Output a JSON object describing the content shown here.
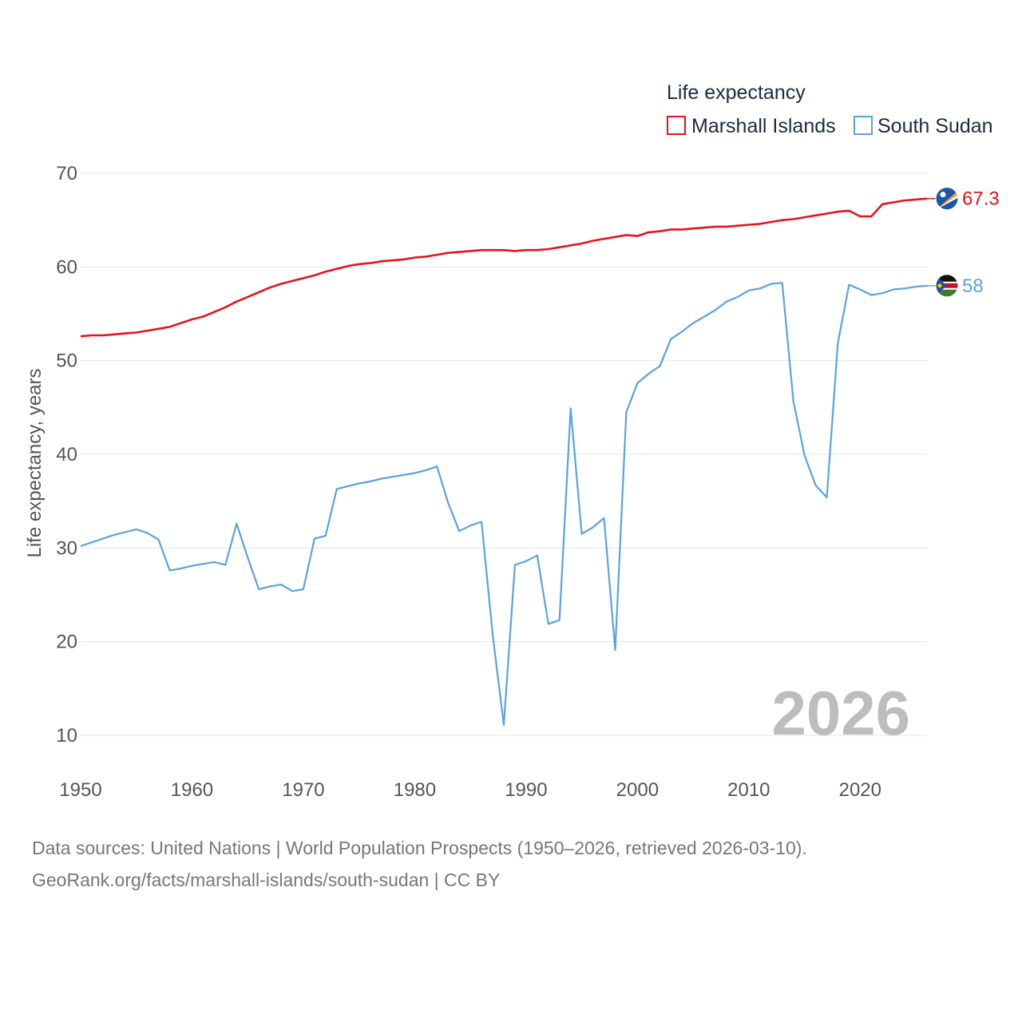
{
  "chart_data": {
    "type": "line",
    "title": "",
    "xlabel": "",
    "ylabel": "Life expectancy, years",
    "xlim": [
      1950,
      2026
    ],
    "ylim": [
      10,
      70
    ],
    "x_ticks": [
      1950,
      1960,
      1970,
      1980,
      1990,
      2000,
      2010,
      2020
    ],
    "y_ticks": [
      10,
      20,
      30,
      40,
      50,
      60,
      70
    ],
    "grid": true,
    "legend_title": "Life expectancy",
    "legend_position": "top-right",
    "year_label": "2026",
    "x": [
      1950,
      1951,
      1952,
      1953,
      1954,
      1955,
      1956,
      1957,
      1958,
      1959,
      1960,
      1961,
      1962,
      1963,
      1964,
      1965,
      1966,
      1967,
      1968,
      1969,
      1970,
      1971,
      1972,
      1973,
      1974,
      1975,
      1976,
      1977,
      1978,
      1979,
      1980,
      1981,
      1982,
      1983,
      1984,
      1985,
      1986,
      1987,
      1988,
      1989,
      1990,
      1991,
      1992,
      1993,
      1994,
      1995,
      1996,
      1997,
      1998,
      1999,
      2000,
      2001,
      2002,
      2003,
      2004,
      2005,
      2006,
      2007,
      2008,
      2009,
      2010,
      2011,
      2012,
      2013,
      2014,
      2015,
      2016,
      2017,
      2018,
      2019,
      2020,
      2021,
      2022,
      2023,
      2024,
      2025,
      2026
    ],
    "series": [
      {
        "name": "Marshall Islands",
        "color": "#e8121a",
        "end_label": "67.3",
        "flag": "marshall-islands-flag-icon",
        "values": [
          52.6,
          52.7,
          52.7,
          52.8,
          52.9,
          53.0,
          53.2,
          53.4,
          53.6,
          54.0,
          54.4,
          54.7,
          55.2,
          55.7,
          56.3,
          56.8,
          57.3,
          57.8,
          58.2,
          58.5,
          58.8,
          59.1,
          59.5,
          59.8,
          60.1,
          60.3,
          60.4,
          60.6,
          60.7,
          60.8,
          61.0,
          61.1,
          61.3,
          61.5,
          61.6,
          61.7,
          61.8,
          61.8,
          61.8,
          61.7,
          61.8,
          61.8,
          61.9,
          62.1,
          62.3,
          62.5,
          62.8,
          63.0,
          63.2,
          63.4,
          63.3,
          63.7,
          63.8,
          64.0,
          64.0,
          64.1,
          64.2,
          64.3,
          64.3,
          64.4,
          64.5,
          64.6,
          64.8,
          65.0,
          65.1,
          65.3,
          65.5,
          65.7,
          65.9,
          66.0,
          65.4,
          65.4,
          66.7,
          66.9,
          67.1,
          67.2,
          67.3
        ]
      },
      {
        "name": "South Sudan",
        "color": "#5aa2e2",
        "end_label": "58",
        "flag": "south-sudan-flag-icon",
        "values": [
          30.2,
          30.6,
          31.0,
          31.4,
          31.7,
          32.0,
          31.6,
          30.9,
          27.6,
          27.8,
          28.1,
          28.3,
          28.5,
          28.2,
          32.6,
          29.0,
          25.6,
          25.9,
          26.1,
          25.4,
          25.6,
          31.0,
          31.3,
          36.3,
          36.6,
          36.9,
          37.1,
          37.4,
          37.6,
          37.8,
          38.0,
          38.3,
          38.7,
          34.8,
          31.8,
          32.4,
          32.8,
          20.7,
          11.1,
          28.2,
          28.6,
          29.2,
          21.9,
          22.3,
          44.9,
          31.5,
          32.2,
          33.2,
          19.1,
          44.5,
          47.6,
          48.6,
          49.4,
          52.3,
          53.1,
          54.0,
          54.7,
          55.4,
          56.3,
          56.8,
          57.5,
          57.7,
          58.2,
          58.3,
          45.7,
          39.9,
          36.7,
          35.4,
          51.9,
          58.1,
          57.6,
          57.0,
          57.2,
          57.6,
          57.7,
          57.9,
          58.0
        ]
      }
    ]
  },
  "source": {
    "line1": "Data sources: United Nations | World Population Prospects (1950–2026, retrieved 2026-03-10).",
    "line2": "GeoRank.org/facts/marshall-islands/south-sudan | CC BY"
  }
}
